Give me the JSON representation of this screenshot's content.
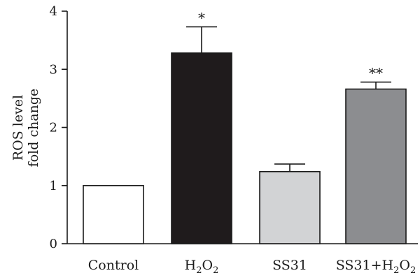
{
  "chart_data": {
    "type": "bar",
    "categories": [
      "Control",
      "H2O2",
      "SS31",
      "SS31+H2O2"
    ],
    "category_labels": [
      {
        "parts": [
          {
            "text": "Control",
            "sub": false
          }
        ]
      },
      {
        "parts": [
          {
            "text": "H",
            "sub": false
          },
          {
            "text": "2",
            "sub": true
          },
          {
            "text": "O",
            "sub": false
          },
          {
            "text": "2",
            "sub": true
          }
        ]
      },
      {
        "parts": [
          {
            "text": "SS31",
            "sub": false
          }
        ]
      },
      {
        "parts": [
          {
            "text": "SS31+H",
            "sub": false
          },
          {
            "text": "2",
            "sub": true
          },
          {
            "text": "O",
            "sub": false
          },
          {
            "text": "2",
            "sub": true
          }
        ]
      }
    ],
    "values": [
      1.0,
      3.28,
      1.24,
      2.66
    ],
    "errors": [
      0,
      0.45,
      0.13,
      0.12
    ],
    "significance": [
      "",
      "*",
      "",
      "**"
    ],
    "bar_colors": [
      "#ffffff",
      "#1f1b1c",
      "#d2d3d5",
      "#8c8d90"
    ],
    "ylabel_lines": [
      "ROS level",
      "fold change"
    ],
    "ylim": [
      0,
      4
    ],
    "yticks": [
      0,
      1,
      2,
      3,
      4
    ],
    "grid": false,
    "legend": "none"
  }
}
